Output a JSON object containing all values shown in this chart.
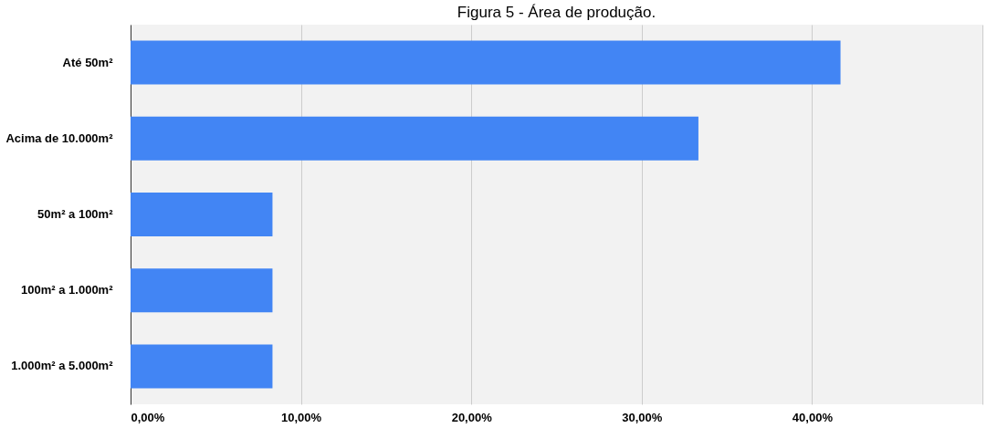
{
  "chart_data": {
    "type": "bar",
    "orientation": "horizontal",
    "title": "Figura 5 - Área de produção.",
    "categories": [
      "Até 50m²",
      "Acima de 10.000m²",
      "50m² a 100m²",
      "100m² a 1.000m²",
      "1.000m² a 5.000m²"
    ],
    "values": [
      41.67,
      33.33,
      8.33,
      8.33,
      8.33
    ],
    "color": "#4285f4",
    "xlim": [
      0,
      50
    ],
    "xticks": [
      {
        "value": 0,
        "label": "0,00%"
      },
      {
        "value": 10,
        "label": "10,00%"
      },
      {
        "value": 20,
        "label": "20,00%"
      },
      {
        "value": 30,
        "label": "30,00%"
      },
      {
        "value": 40,
        "label": "40,00%"
      },
      {
        "value": 50,
        "label": null
      }
    ],
    "grid": "x"
  }
}
